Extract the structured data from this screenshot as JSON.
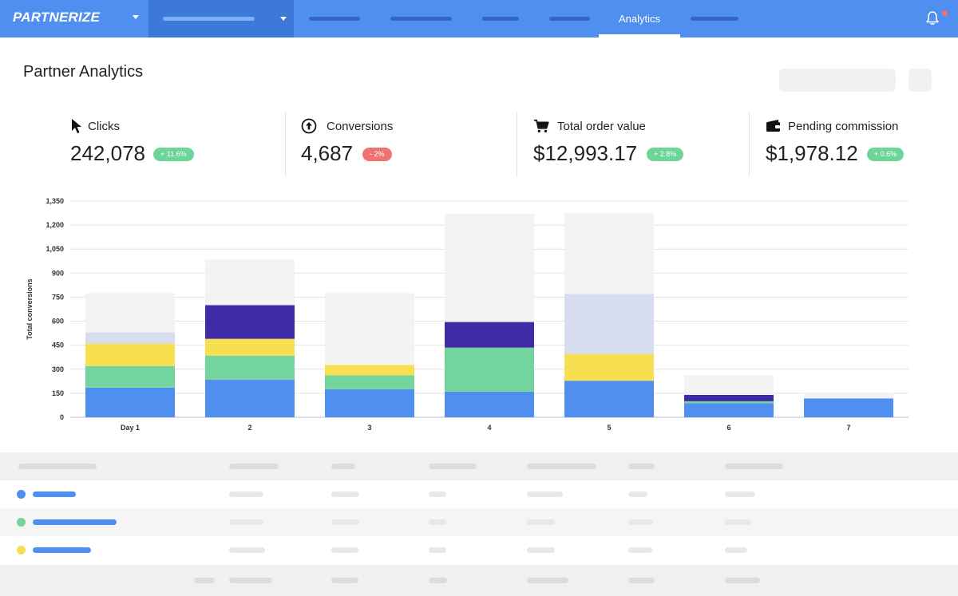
{
  "brand": {
    "name": "PARTNERIZE"
  },
  "nav": {
    "active_tab": "Analytics"
  },
  "page": {
    "title": "Partner Analytics"
  },
  "kpis": [
    {
      "label": "Clicks",
      "value": "242,078",
      "delta": "+ 11.6%",
      "trend": "up",
      "icon": "cursor-icon"
    },
    {
      "label": "Conversions",
      "value": "4,687",
      "delta": "- 2%",
      "trend": "down",
      "icon": "arrow-up-circle-icon"
    },
    {
      "label": "Total order value",
      "value": "$12,993.17",
      "delta": "+ 2.8%",
      "trend": "up",
      "icon": "cart-icon"
    },
    {
      "label": "Pending commission",
      "value": "$1,978.12",
      "delta": "+ 0.6%",
      "trend": "up",
      "icon": "wallet-icon"
    }
  ],
  "colors": {
    "accent": "#4f8ff0",
    "positive": "#6dd49a",
    "negative": "#ef7373"
  },
  "chart_data": {
    "type": "bar",
    "stacked": true,
    "ylabel": "Total conversions",
    "xlabel": "",
    "ylim": [
      0,
      1350
    ],
    "yticks": [
      "0",
      "150",
      "300",
      "450",
      "600",
      "750",
      "900",
      "1,050",
      "1,200",
      "1,350"
    ],
    "categories": [
      "Day 1",
      "2",
      "3",
      "4",
      "5",
      "6",
      "7"
    ],
    "grid": true,
    "series": [
      {
        "color": "#4f8ff0",
        "values": [
          185,
          235,
          175,
          160,
          228,
          88,
          118
        ]
      },
      {
        "color": "#74d49e",
        "values": [
          135,
          150,
          87,
          275,
          0,
          12,
          0
        ]
      },
      {
        "color": "#f8de51",
        "values": [
          140,
          105,
          65,
          0,
          168,
          0,
          0
        ]
      },
      {
        "color": "#3f2aa8",
        "values": [
          0,
          210,
          0,
          160,
          0,
          40,
          0
        ]
      },
      {
        "color": "#d7dcee",
        "values": [
          70,
          0,
          0,
          0,
          375,
          0,
          0
        ]
      },
      {
        "color": "#f3f3f3",
        "values": [
          245,
          285,
          448,
          675,
          504,
          123,
          35
        ]
      }
    ]
  }
}
